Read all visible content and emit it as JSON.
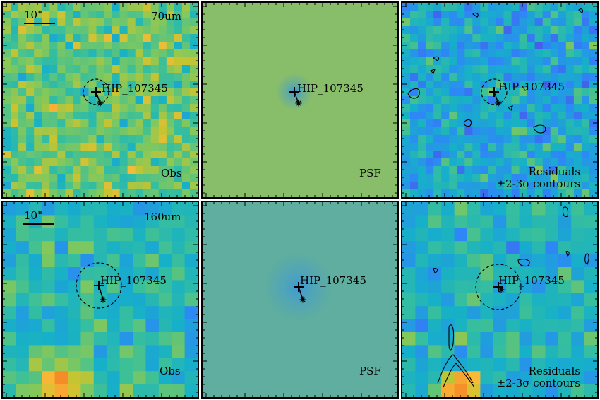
{
  "star_name": "HIP_107345",
  "scale_label": "10\"",
  "rows": [
    {
      "band": "70um",
      "obs_label": "Obs",
      "psf_label": "PSF",
      "residual_label_1": "Residuals",
      "residual_label_2": "±2-3σ contours"
    },
    {
      "band": "160um",
      "obs_label": "Obs",
      "psf_label": "PSF",
      "residual_label_1": "Residuals",
      "residual_label_2": "±2-3σ contours"
    }
  ],
  "colors": {
    "psf_bg_70": "#88bd6a",
    "psf_bg_160": "#5fae9f",
    "psf_core": "#3f9ad4"
  }
}
